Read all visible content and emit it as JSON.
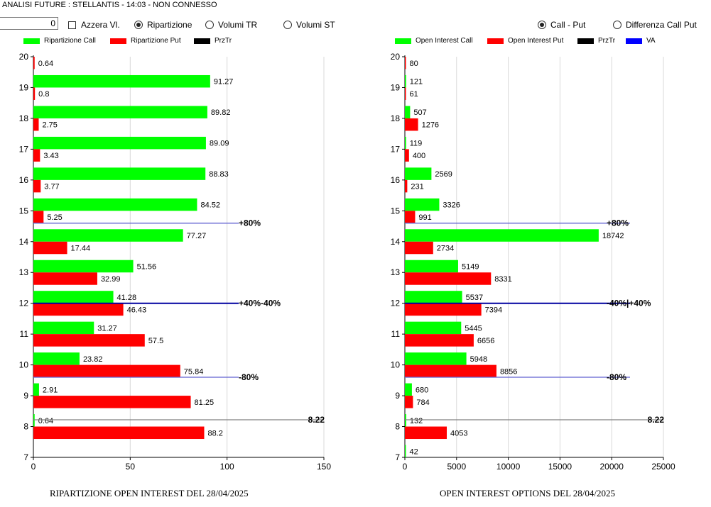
{
  "header": {
    "title": "ANALISI FUTURE : STELLANTIS - 14:03 - NON CONNESSO",
    "num_value": "0",
    "azzera_label": "Azzera Vl.",
    "radio_left": [
      {
        "label": "Ripartizione",
        "selected": true
      },
      {
        "label": "Volumi TR",
        "selected": false
      },
      {
        "label": "Volumi ST",
        "selected": false
      }
    ],
    "radio_right": [
      {
        "label": "Call - Put",
        "selected": true
      },
      {
        "label": "Differenza Call Put",
        "selected": false
      }
    ]
  },
  "colors": {
    "call": "#00ff00",
    "put": "#ff0000",
    "przTr": "#000000",
    "va": "#0000ff",
    "line80": "#6060d0",
    "line40": "#0000a0",
    "priceLine": "#808080"
  },
  "chart_data": [
    {
      "type": "bar",
      "legend": [
        "Ripartizione Call",
        "Ripartizione Put",
        "PrzTr"
      ],
      "categories": [
        8,
        9,
        10,
        11,
        12,
        13,
        14,
        15,
        16,
        17,
        18,
        19,
        20
      ],
      "series": [
        {
          "name": "Ripartizione Call",
          "values": [
            0.64,
            2.91,
            23.82,
            31.27,
            41.28,
            51.56,
            77.27,
            84.52,
            88.83,
            89.09,
            89.82,
            91.27,
            null
          ],
          "labels": [
            "0.64",
            "2.91",
            "23.82",
            "31.27",
            "41.28",
            "51.56",
            "77.27",
            "84.52",
            "88.83",
            "89.09",
            "89.82",
            "91.27",
            ""
          ]
        },
        {
          "name": "Ripartizione Put",
          "values": [
            88.2,
            81.25,
            75.84,
            57.5,
            46.43,
            32.99,
            17.44,
            5.25,
            3.77,
            3.43,
            2.75,
            0.8,
            0.64
          ],
          "labels": [
            "88.2",
            "81.25",
            "75.84",
            "57.5",
            "46.43",
            "32.99",
            "17.44",
            "5.25",
            "3.77",
            "3.43",
            "2.75",
            "0.8",
            "0.64"
          ]
        }
      ],
      "xlim": [
        0,
        150
      ],
      "xticks": [
        0,
        50,
        100,
        150
      ],
      "ylim": [
        7,
        20
      ],
      "yticks": [
        7,
        8,
        9,
        10,
        11,
        12,
        13,
        14,
        15,
        16,
        17,
        18,
        19,
        20
      ],
      "refs": [
        {
          "y": 14.6,
          "label": "+80%",
          "kind": "line80"
        },
        {
          "y": 12,
          "label": "+40%-40%",
          "kind": "line40"
        },
        {
          "y": 9.6,
          "label": "-80%",
          "kind": "line80"
        },
        {
          "y": 8.22,
          "label": "8.22",
          "kind": "priceLine"
        }
      ],
      "caption": "RIPARTIZIONE OPEN INTEREST DEL 28/04/2025"
    },
    {
      "type": "bar",
      "legend": [
        "Open Interest Call",
        "Open Interest Put",
        "PrzTr",
        "VA"
      ],
      "categories": [
        7,
        8,
        9,
        10,
        11,
        12,
        13,
        14,
        15,
        16,
        17,
        18,
        19,
        20
      ],
      "series": [
        {
          "name": "Open Interest Call",
          "values": [
            42,
            132,
            680,
            5948,
            5445,
            5537,
            5149,
            18742,
            3326,
            2569,
            119,
            507,
            121,
            null
          ],
          "labels": [
            "42",
            "132",
            "680",
            "5948",
            "5445",
            "5537",
            "5149",
            "18742",
            "3326",
            "2569",
            "119",
            "507",
            "121",
            ""
          ]
        },
        {
          "name": "Open Interest Put",
          "values": [
            null,
            4053,
            784,
            8856,
            6656,
            7394,
            8331,
            2734,
            991,
            231,
            400,
            1276,
            61,
            80
          ],
          "labels": [
            "",
            "4053",
            "784",
            "8856",
            "6656",
            "7394",
            "8331",
            "2734",
            "991",
            "231",
            "400",
            "1276",
            "61",
            "80"
          ]
        }
      ],
      "xlim": [
        0,
        25000
      ],
      "xticks": [
        0,
        5000,
        10000,
        15000,
        20000,
        25000
      ],
      "ylim": [
        7,
        20
      ],
      "yticks": [
        7,
        8,
        9,
        10,
        11,
        12,
        13,
        14,
        15,
        16,
        17,
        18,
        19,
        20
      ],
      "refs": [
        {
          "y": 14.6,
          "label": "+80%",
          "kind": "line80"
        },
        {
          "y": 12,
          "label": "-40%|+40%",
          "kind": "line40"
        },
        {
          "y": 9.6,
          "label": "-80%",
          "kind": "line80"
        },
        {
          "y": 8.22,
          "label": "8.22",
          "kind": "priceLine"
        }
      ],
      "caption": "OPEN INTEREST OPTIONS DEL 28/04/2025"
    }
  ]
}
